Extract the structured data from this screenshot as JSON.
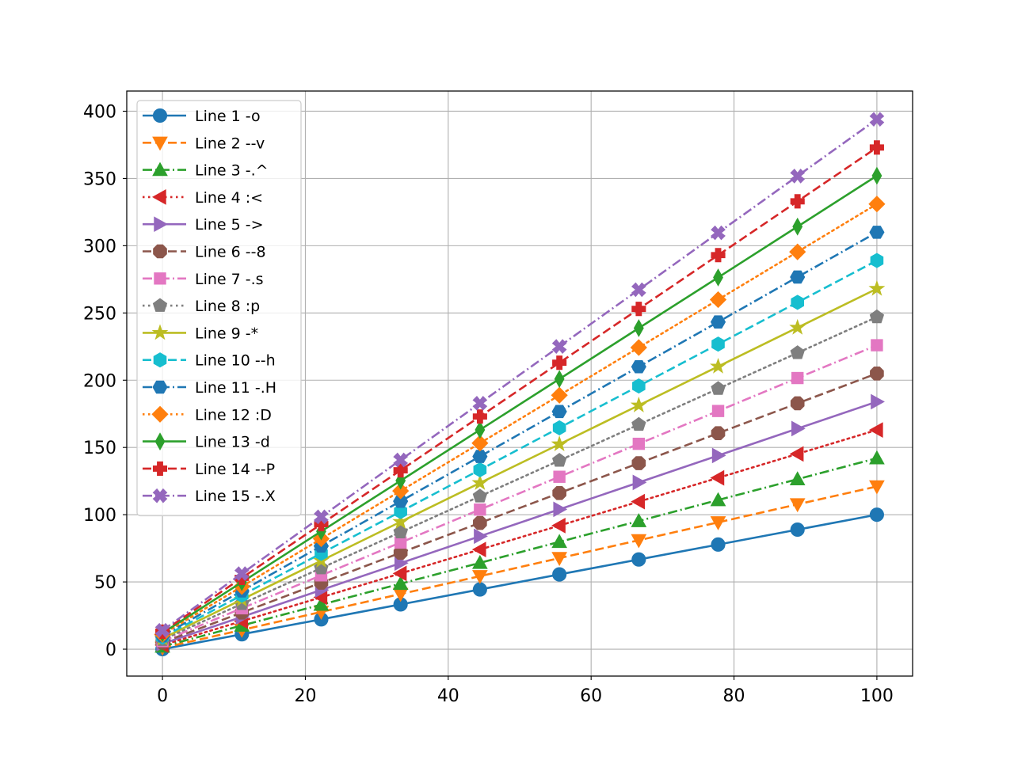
{
  "chart_data": {
    "type": "line",
    "title": "",
    "xlabel": "",
    "ylabel": "",
    "xlim": [
      -5,
      105
    ],
    "ylim": [
      -20,
      415
    ],
    "grid": true,
    "legend_position": "top-left",
    "x": [
      0,
      11.11,
      22.22,
      33.33,
      44.44,
      55.56,
      66.67,
      77.78,
      88.89,
      100
    ],
    "x_ticks": [
      {
        "value": 0,
        "label": "0"
      },
      {
        "value": 20,
        "label": "20"
      },
      {
        "value": 40,
        "label": "40"
      },
      {
        "value": 60,
        "label": "60"
      },
      {
        "value": 80,
        "label": "80"
      },
      {
        "value": 100,
        "label": "100"
      }
    ],
    "y_ticks": [
      {
        "value": 0,
        "label": "0"
      },
      {
        "value": 50,
        "label": "50"
      },
      {
        "value": 100,
        "label": "100"
      },
      {
        "value": 150,
        "label": "150"
      },
      {
        "value": 200,
        "label": "200"
      },
      {
        "value": 250,
        "label": "250"
      },
      {
        "value": 300,
        "label": "300"
      },
      {
        "value": 350,
        "label": "350"
      },
      {
        "value": 400,
        "label": "400"
      }
    ],
    "series": [
      {
        "name": "Line 1 -o",
        "color": "#1f77b4",
        "linestyle": "solid",
        "marker": "o",
        "values": [
          0,
          11.1,
          22.2,
          33.3,
          44.4,
          55.6,
          66.7,
          77.8,
          88.9,
          100
        ]
      },
      {
        "name": "Line 2 --v",
        "color": "#ff7f0e",
        "linestyle": "dashed",
        "marker": "v",
        "values": [
          1,
          14.3,
          27.7,
          41.0,
          54.3,
          67.7,
          81.0,
          94.3,
          107.7,
          121
        ]
      },
      {
        "name": "Line 3 -.^",
        "color": "#2ca02c",
        "linestyle": "dashdot",
        "marker": "^",
        "values": [
          2,
          17.6,
          33.1,
          48.7,
          64.2,
          79.8,
          95.3,
          110.9,
          126.4,
          142
        ]
      },
      {
        "name": "Line 4 :<",
        "color": "#d62728",
        "linestyle": "dotted",
        "marker": "<",
        "values": [
          3,
          20.8,
          38.6,
          56.3,
          74.1,
          91.9,
          109.7,
          127.4,
          145.2,
          163
        ]
      },
      {
        "name": "Line 5 ->",
        "color": "#9467bd",
        "linestyle": "solid",
        "marker": ">",
        "values": [
          4,
          24.0,
          44.0,
          64.0,
          84.0,
          104.0,
          124.0,
          144.0,
          164.0,
          184
        ]
      },
      {
        "name": "Line 6 --8",
        "color": "#8c564b",
        "linestyle": "dashed",
        "marker": "8",
        "values": [
          5,
          27.2,
          49.4,
          71.7,
          93.9,
          116.1,
          138.3,
          160.6,
          182.8,
          205
        ]
      },
      {
        "name": "Line 7 -.s",
        "color": "#e377c2",
        "linestyle": "dashdot",
        "marker": "s",
        "values": [
          6,
          30.4,
          54.9,
          79.3,
          103.8,
          128.2,
          152.7,
          177.1,
          201.6,
          226
        ]
      },
      {
        "name": "Line 8 :p",
        "color": "#7f7f7f",
        "linestyle": "dotted",
        "marker": "p",
        "values": [
          7,
          33.7,
          60.3,
          87.0,
          113.7,
          140.3,
          167.0,
          193.7,
          220.3,
          247
        ]
      },
      {
        "name": "Line 9 -*",
        "color": "#bcbd22",
        "linestyle": "solid",
        "marker": "*",
        "values": [
          8,
          36.9,
          65.8,
          94.7,
          123.6,
          152.4,
          181.3,
          210.2,
          239.1,
          268
        ]
      },
      {
        "name": "Line 10 --h",
        "color": "#17becf",
        "linestyle": "dashed",
        "marker": "h",
        "values": [
          9,
          40.1,
          71.2,
          102.3,
          133.4,
          164.6,
          195.7,
          226.8,
          257.9,
          289
        ]
      },
      {
        "name": "Line 11 -.H",
        "color": "#1f77b4",
        "linestyle": "dashdot",
        "marker": "H",
        "values": [
          10,
          43.3,
          76.7,
          110.0,
          143.3,
          176.7,
          210.0,
          243.3,
          276.7,
          310
        ]
      },
      {
        "name": "Line 12 :D",
        "color": "#ff7f0e",
        "linestyle": "dotted",
        "marker": "D",
        "values": [
          11,
          46.6,
          82.1,
          117.7,
          153.2,
          188.8,
          224.3,
          259.9,
          295.4,
          331
        ]
      },
      {
        "name": "Line 13 -d",
        "color": "#2ca02c",
        "linestyle": "solid",
        "marker": "d",
        "values": [
          12,
          49.8,
          87.6,
          125.3,
          163.1,
          200.9,
          238.7,
          276.4,
          314.2,
          352
        ]
      },
      {
        "name": "Line 14 --P",
        "color": "#d62728",
        "linestyle": "dashed",
        "marker": "P",
        "values": [
          13,
          53.0,
          93.0,
          133.0,
          173.0,
          213.0,
          253.0,
          293.0,
          333.0,
          373
        ]
      },
      {
        "name": "Line 15 -.X",
        "color": "#9467bd",
        "linestyle": "dashdot",
        "marker": "X",
        "values": [
          14,
          56.2,
          98.4,
          140.7,
          182.9,
          225.1,
          267.3,
          309.6,
          351.8,
          394
        ]
      }
    ]
  }
}
